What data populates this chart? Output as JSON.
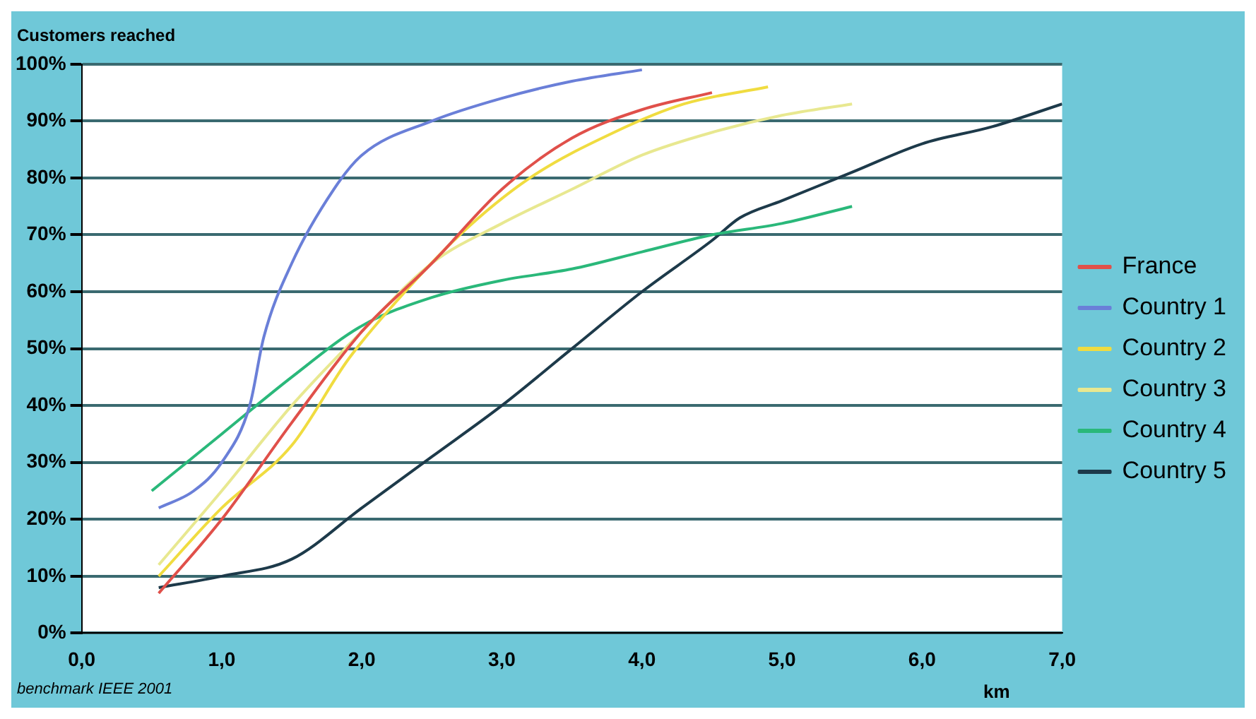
{
  "chart_data": {
    "type": "line",
    "ylabel": "Customers reached",
    "xlabel": "km",
    "annotations": [
      "benchmark IEEE 2001"
    ],
    "xlim": [
      0,
      7
    ],
    "xticks": [
      {
        "value": 0,
        "label": "0,0"
      },
      {
        "value": 1,
        "label": "1,0"
      },
      {
        "value": 2,
        "label": "2,0"
      },
      {
        "value": 3,
        "label": "3,0"
      },
      {
        "value": 4,
        "label": "4,0"
      },
      {
        "value": 5,
        "label": "5,0"
      },
      {
        "value": 6,
        "label": "6,0"
      },
      {
        "value": 7,
        "label": "7,0"
      }
    ],
    "ylim": [
      0,
      100
    ],
    "yticks": [
      {
        "value": 0,
        "label": "0%"
      },
      {
        "value": 10,
        "label": "10%"
      },
      {
        "value": 20,
        "label": "20%"
      },
      {
        "value": 30,
        "label": "30%"
      },
      {
        "value": 40,
        "label": "40%"
      },
      {
        "value": 50,
        "label": "50%"
      },
      {
        "value": 60,
        "label": "60%"
      },
      {
        "value": 70,
        "label": "70%"
      },
      {
        "value": 80,
        "label": "80%"
      },
      {
        "value": 90,
        "label": "90%"
      },
      {
        "value": 100,
        "label": "100%"
      }
    ],
    "grid": "y",
    "legend": "right",
    "marker": "none",
    "line_style": "solid",
    "series": [
      {
        "name": "France",
        "color": "#e0504a",
        "x": [
          0.55,
          1,
          1.5,
          2,
          2.5,
          3,
          3.5,
          4,
          4.5
        ],
        "values": [
          7,
          20,
          37,
          53,
          65,
          78,
          87,
          92,
          95
        ]
      },
      {
        "name": "Country 1",
        "color": "#6a7fd8",
        "x": [
          0.55,
          0.8,
          1,
          1.2,
          1.3,
          1.5,
          1.8,
          2,
          2.5,
          3,
          3.5,
          4
        ],
        "values": [
          22,
          25,
          30,
          40,
          52,
          65,
          78,
          84,
          90,
          94,
          97,
          99
        ]
      },
      {
        "name": "Country 2",
        "color": "#f0dc40",
        "x": [
          0.55,
          1,
          1.5,
          1.9,
          2.2,
          2.7,
          3.2,
          3.8,
          4.3,
          4.9
        ],
        "values": [
          10,
          22,
          33,
          48,
          57,
          70,
          80,
          88,
          93,
          96
        ]
      },
      {
        "name": "Country 3",
        "color": "#e8e890",
        "x": [
          0.55,
          1,
          1.5,
          2,
          2.5,
          3,
          3.5,
          4,
          4.5,
          5,
          5.5
        ],
        "values": [
          12,
          25,
          40,
          53,
          65,
          72,
          78,
          84,
          88,
          91,
          93
        ]
      },
      {
        "name": "Country 4",
        "color": "#2ab87a",
        "x": [
          0.5,
          1,
          1.5,
          2,
          2.5,
          3,
          3.5,
          4,
          4.5,
          5,
          5.5
        ],
        "values": [
          25,
          35,
          45,
          54,
          59,
          62,
          64,
          67,
          70,
          72,
          75
        ]
      },
      {
        "name": "Country 5",
        "color": "#1d3a4a",
        "x": [
          0.55,
          1,
          1.5,
          2,
          2.5,
          3,
          3.5,
          4,
          4.5,
          4.7,
          5,
          5.5,
          6,
          6.5,
          7
        ],
        "values": [
          8,
          10,
          13,
          22,
          31,
          40,
          50,
          60,
          69,
          73,
          76,
          81,
          86,
          89,
          93
        ]
      }
    ]
  }
}
